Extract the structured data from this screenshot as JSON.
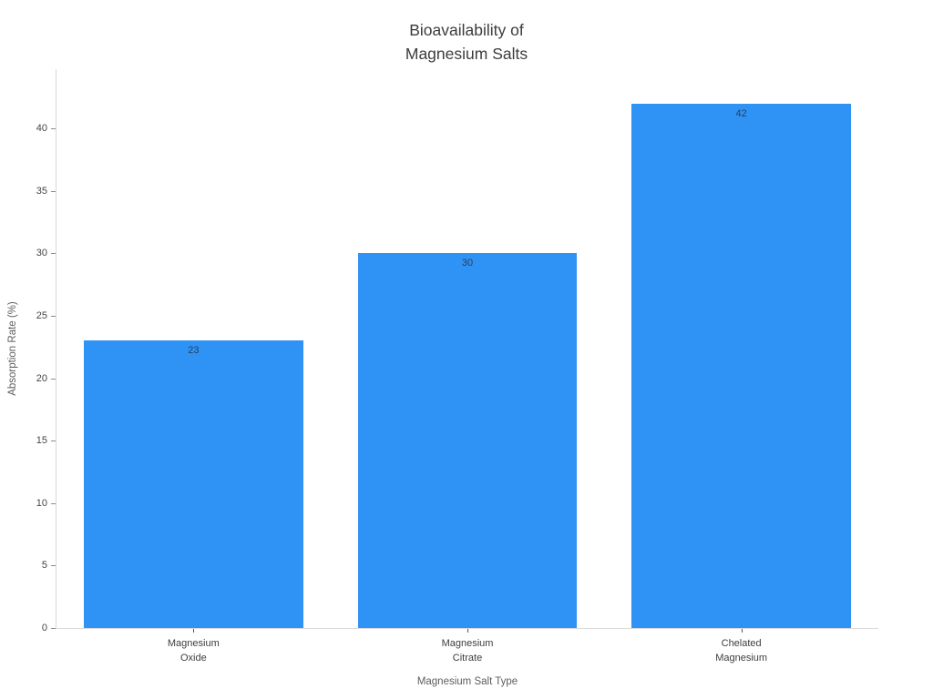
{
  "title": "Bioavailability of\nMagnesium Salts",
  "chart_data": {
    "type": "bar",
    "title": "Bioavailability of Magnesium Salts",
    "categories": [
      "Magnesium\nOxide",
      "Magnesium\nCitrate",
      "Chelated\nMagnesium"
    ],
    "values": [
      23,
      30,
      42
    ],
    "value_labels": [
      "23",
      "30",
      "42"
    ],
    "xlabel": "Magnesium Salt Type",
    "ylabel": "Absorption Rate (%)",
    "ylim": [
      0,
      44.75
    ],
    "yticks": [
      0,
      5,
      10,
      15,
      20,
      25,
      30,
      35,
      40
    ],
    "grid": false,
    "legend": "none",
    "bar_color": "#2f93f5",
    "bar_label_color": "#2a3f5f",
    "spine_color": "#d9d9d9",
    "tick_label_color": "#444444",
    "axis_title_color": "#5e5e5e",
    "title_color": "#3c3c3c",
    "background_color": "#ffffff"
  }
}
